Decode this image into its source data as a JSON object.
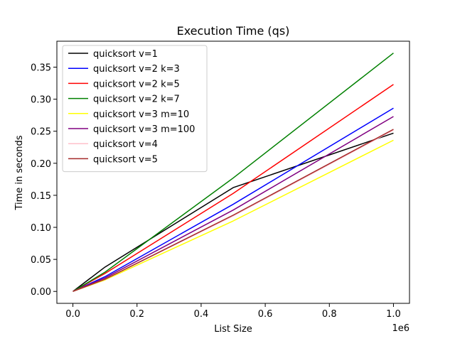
{
  "chart_data": {
    "type": "line",
    "title": "Execution Time (qs)",
    "xlabel": "List Size",
    "ylabel": "Time in seconds",
    "x_offset_label": "1e6",
    "x_scale": 1000000,
    "xlim": [
      -50000,
      1050000
    ],
    "ylim": [
      -0.0186,
      0.3905
    ],
    "x_ticks": [
      0,
      200000,
      400000,
      600000,
      800000,
      1000000
    ],
    "x_tick_labels": [
      "0.0",
      "0.2",
      "0.4",
      "0.6",
      "0.8",
      "1.0"
    ],
    "y_ticks": [
      0.0,
      0.05,
      0.1,
      0.15,
      0.2,
      0.25,
      0.3,
      0.35
    ],
    "y_tick_labels": [
      "0.00",
      "0.05",
      "0.10",
      "0.15",
      "0.20",
      "0.25",
      "0.30",
      "0.35"
    ],
    "grid": false,
    "legend_position": "top-left",
    "x": [
      0,
      100000,
      500000,
      1000000
    ],
    "series": [
      {
        "name": "quicksort v=1",
        "color": "#000000",
        "values": [
          0.0,
          0.038,
          0.162,
          0.247
        ]
      },
      {
        "name": "quicksort v=2 k=3",
        "color": "#0000ff",
        "values": [
          0.0,
          0.023,
          0.136,
          0.286
        ]
      },
      {
        "name": "quicksort v=2 k=5",
        "color": "#ff0000",
        "values": [
          0.0,
          0.028,
          0.153,
          0.323
        ]
      },
      {
        "name": "quicksort v=2 k=7",
        "color": "#008000",
        "values": [
          0.0,
          0.03,
          0.177,
          0.372
        ]
      },
      {
        "name": "quicksort v=3 m=10",
        "color": "#ffff00",
        "values": [
          0.0,
          0.018,
          0.11,
          0.236
        ]
      },
      {
        "name": "quicksort v=3 m=100",
        "color": "#800080",
        "values": [
          0.0,
          0.021,
          0.127,
          0.273
        ]
      },
      {
        "name": "quicksort v=4",
        "color": "#ffc0cb",
        "values": [
          0.0,
          0.019,
          0.118,
          0.252
        ]
      },
      {
        "name": "quicksort v=5",
        "color": "#a52a2a",
        "values": [
          0.0,
          0.019,
          0.119,
          0.253
        ]
      }
    ]
  }
}
